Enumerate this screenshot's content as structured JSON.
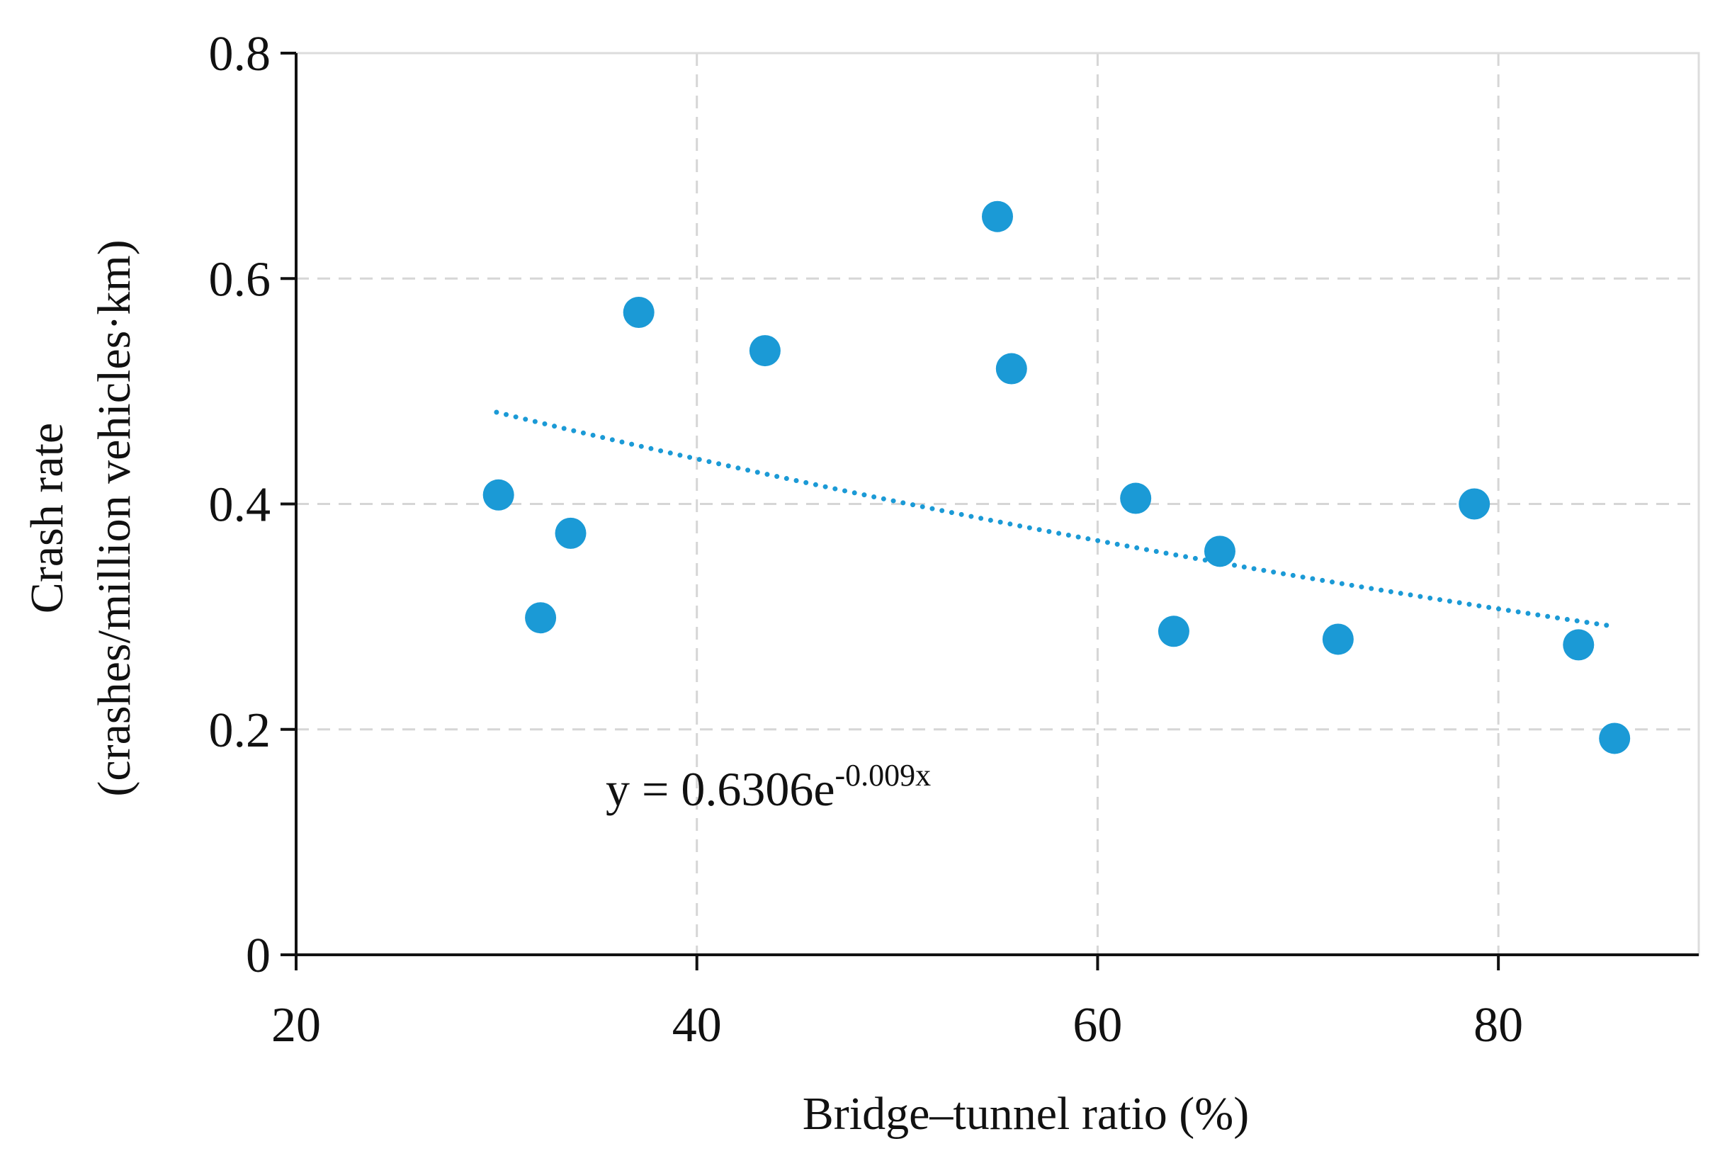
{
  "chart_data": {
    "type": "scatter",
    "title": "",
    "xlabel": "Bridge–tunnel ratio (%)",
    "ylabel_line1": "Crash rate",
    "ylabel_line2": "(crashes/million vehicles·km)",
    "xlim": [
      20,
      90
    ],
    "ylim": [
      0,
      0.8
    ],
    "x_ticks": [
      20,
      40,
      60,
      80
    ],
    "x_tick_labels": [
      "20",
      "40",
      "60",
      "80"
    ],
    "y_ticks": [
      0,
      0.2,
      0.4,
      0.6,
      0.8
    ],
    "y_tick_labels": [
      "0",
      "0.2",
      "0.4",
      "0.6",
      "0.8"
    ],
    "grid": true,
    "series": [
      {
        "name": "Crash rate",
        "color": "#1b9ad6",
        "points": [
          {
            "x": 30.1,
            "y": 0.408
          },
          {
            "x": 32.2,
            "y": 0.299
          },
          {
            "x": 33.7,
            "y": 0.374
          },
          {
            "x": 37.1,
            "y": 0.57
          },
          {
            "x": 43.4,
            "y": 0.536
          },
          {
            "x": 55.0,
            "y": 0.655
          },
          {
            "x": 55.7,
            "y": 0.52
          },
          {
            "x": 61.9,
            "y": 0.405
          },
          {
            "x": 63.8,
            "y": 0.287
          },
          {
            "x": 66.1,
            "y": 0.358
          },
          {
            "x": 72.0,
            "y": 0.28
          },
          {
            "x": 78.8,
            "y": 0.4
          },
          {
            "x": 84.0,
            "y": 0.275
          },
          {
            "x": 85.8,
            "y": 0.192
          }
        ]
      }
    ],
    "trendline": {
      "type": "exponential",
      "a": 0.6306,
      "b": -0.009,
      "x_start": 30,
      "x_end": 85.5,
      "color": "#1b9ad6",
      "style": "dotted"
    },
    "equation": {
      "prefix": "y = 0.6306e",
      "exponent": "-0.009x"
    }
  }
}
